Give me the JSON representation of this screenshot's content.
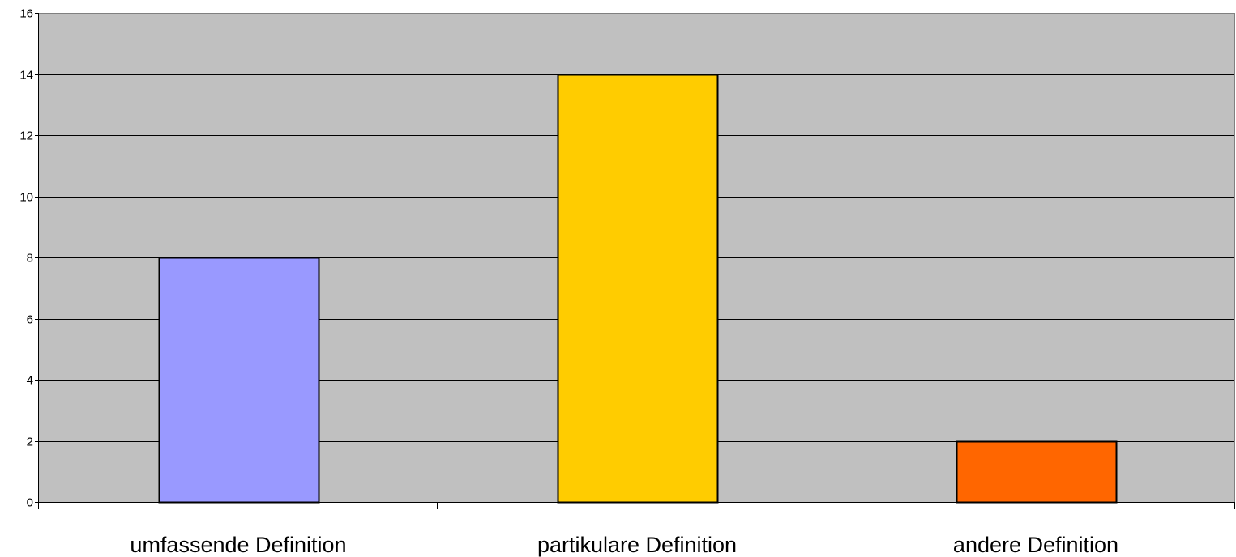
{
  "chart_data": {
    "type": "bar",
    "categories": [
      "umfassende Definition",
      "partikulare Definition",
      "andere Definition"
    ],
    "values": [
      8,
      14,
      2
    ],
    "bar_colors": [
      "#9999FF",
      "#FFCC00",
      "#FF6600"
    ],
    "plot_background": "#C0C0C0",
    "ylim": [
      0,
      16
    ],
    "yticks": [
      0,
      2,
      4,
      6,
      8,
      10,
      12,
      14,
      16
    ],
    "ytick_labels": [
      "0",
      "2",
      "4",
      "6",
      "8",
      "10",
      "12",
      "14",
      "16"
    ],
    "grid": true,
    "title": "",
    "xlabel": "",
    "ylabel": ""
  }
}
